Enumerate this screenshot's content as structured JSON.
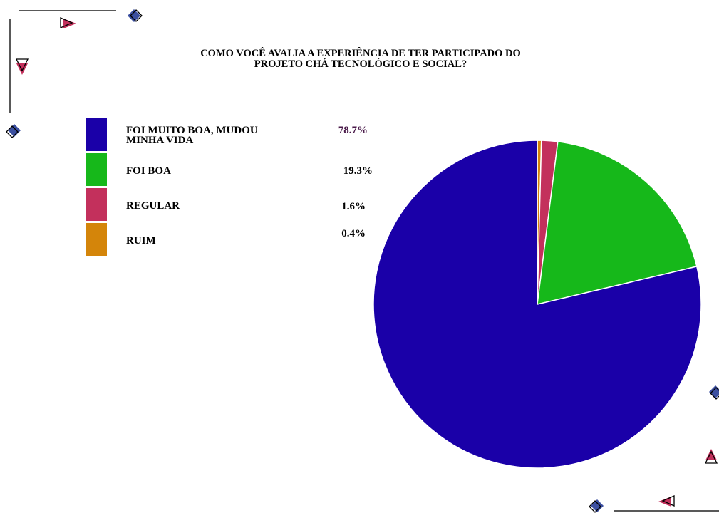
{
  "title_line1": "COMO VOCÊ AVALIA A EXPERIÊNCIA DE TER PARTICIPADO DO",
  "title_line2": "PROJETO CHÁ TECNOLÓGICO E SOCIAL?",
  "chart_data": {
    "type": "pie",
    "title": "COMO VOCÊ AVALIA A EXPERIÊNCIA DE TER PARTICIPADO DO PROJETO CHÁ TECNOLÓGICO E SOCIAL?",
    "legend_position": "left",
    "slices": [
      {
        "label_lines": [
          "FOI MUITO BOA, MUDOU",
          "MINHA VIDA"
        ],
        "value": 78.7,
        "display": "78.7%",
        "color": "#1a00a8",
        "pct_color": "#4a1a4a"
      },
      {
        "label_lines": [
          "FOI BOA"
        ],
        "value": 19.3,
        "display": "19.3%",
        "color": "#16b81a",
        "pct_color": "#000000"
      },
      {
        "label_lines": [
          "REGULAR"
        ],
        "value": 1.6,
        "display": "1.6%",
        "color": "#c3305c",
        "pct_color": "#000000"
      },
      {
        "label_lines": [
          "RUIM"
        ],
        "value": 0.4,
        "display": "0.4%",
        "color": "#d4850a",
        "pct_color": "#000000"
      }
    ],
    "start_angle": "12 o'clock",
    "direction": "counterclockwise"
  },
  "decorations": {
    "diamond_color": "#3b4fa0",
    "triangle_color": "#c3305c"
  }
}
